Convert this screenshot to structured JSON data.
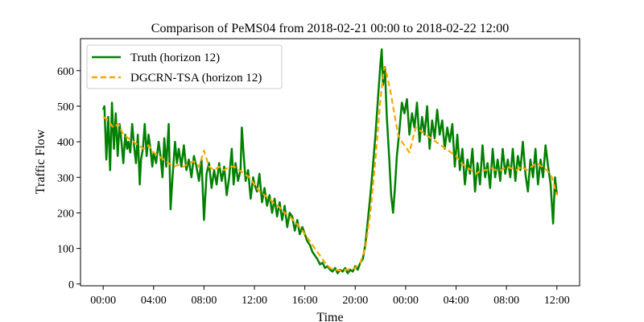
{
  "chart_data": {
    "type": "line",
    "title": "Comparison of PeMS04 from 2018-02-21 00:00 to 2018-02-22 12:00",
    "xlabel": "Time",
    "ylabel": "Traffic Flow",
    "x_ticks": [
      "00:00",
      "04:00",
      "08:00",
      "12:00",
      "16:00",
      "20:00",
      "00:00",
      "04:00",
      "08:00",
      "12:00"
    ],
    "x_tick_hours": [
      0,
      4,
      8,
      12,
      16,
      20,
      24,
      28,
      32,
      36
    ],
    "xlim": [
      -1.8,
      37.8
    ],
    "y_ticks": [
      0,
      100,
      200,
      300,
      400,
      500,
      600
    ],
    "ylim": [
      -5,
      690
    ],
    "legend_position": "upper-left",
    "grid": false,
    "x_unit": "hours from 2018-02-21 00:00",
    "series": [
      {
        "name": "Truth (horizon 12)",
        "color": "#008000",
        "style": "solid",
        "points": [
          [
            0,
            490
          ],
          [
            0.1,
            500
          ],
          [
            0.25,
            350
          ],
          [
            0.4,
            470
          ],
          [
            0.55,
            320
          ],
          [
            0.7,
            510
          ],
          [
            0.85,
            380
          ],
          [
            1,
            480
          ],
          [
            1.15,
            360
          ],
          [
            1.3,
            450
          ],
          [
            1.45,
            400
          ],
          [
            1.6,
            340
          ],
          [
            1.75,
            420
          ],
          [
            1.9,
            380
          ],
          [
            2,
            400
          ],
          [
            2.15,
            370
          ],
          [
            2.3,
            450
          ],
          [
            2.45,
            390
          ],
          [
            2.6,
            340
          ],
          [
            2.75,
            420
          ],
          [
            2.9,
            280
          ],
          [
            3,
            350
          ],
          [
            3.15,
            380
          ],
          [
            3.3,
            450
          ],
          [
            3.45,
            360
          ],
          [
            3.6,
            420
          ],
          [
            3.75,
            380
          ],
          [
            3.9,
            330
          ],
          [
            4,
            370
          ],
          [
            4.2,
            340
          ],
          [
            4.4,
            400
          ],
          [
            4.55,
            360
          ],
          [
            4.7,
            300
          ],
          [
            4.85,
            410
          ],
          [
            5,
            330
          ],
          [
            5.2,
            450
          ],
          [
            5.35,
            210
          ],
          [
            5.5,
            300
          ],
          [
            5.7,
            400
          ],
          [
            5.85,
            340
          ],
          [
            6,
            380
          ],
          [
            6.2,
            330
          ],
          [
            6.4,
            390
          ],
          [
            6.6,
            320
          ],
          [
            6.8,
            350
          ],
          [
            7,
            300
          ],
          [
            7.2,
            360
          ],
          [
            7.4,
            330
          ],
          [
            7.6,
            290
          ],
          [
            7.8,
            350
          ],
          [
            8,
            180
          ],
          [
            8.2,
            310
          ],
          [
            8.4,
            340
          ],
          [
            8.6,
            270
          ],
          [
            8.8,
            320
          ],
          [
            9,
            280
          ],
          [
            9.2,
            340
          ],
          [
            9.4,
            290
          ],
          [
            9.6,
            330
          ],
          [
            9.8,
            250
          ],
          [
            10,
            300
          ],
          [
            10.2,
            380
          ],
          [
            10.35,
            280
          ],
          [
            10.5,
            340
          ],
          [
            10.7,
            290
          ],
          [
            10.9,
            320
          ],
          [
            11,
            440
          ],
          [
            11.15,
            360
          ],
          [
            11.3,
            290
          ],
          [
            11.5,
            320
          ],
          [
            11.7,
            240
          ],
          [
            11.9,
            300
          ],
          [
            12,
            280
          ],
          [
            12.2,
            260
          ],
          [
            12.4,
            310
          ],
          [
            12.6,
            230
          ],
          [
            12.8,
            270
          ],
          [
            13,
            220
          ],
          [
            13.2,
            250
          ],
          [
            13.4,
            200
          ],
          [
            13.6,
            240
          ],
          [
            13.8,
            190
          ],
          [
            14,
            230
          ],
          [
            14.2,
            180
          ],
          [
            14.4,
            220
          ],
          [
            14.6,
            160
          ],
          [
            14.8,
            200
          ],
          [
            15,
            190
          ],
          [
            15.2,
            150
          ],
          [
            15.4,
            180
          ],
          [
            15.6,
            140
          ],
          [
            15.8,
            160
          ],
          [
            16,
            140
          ],
          [
            16.2,
            120
          ],
          [
            16.4,
            110
          ],
          [
            16.6,
            90
          ],
          [
            16.8,
            80
          ],
          [
            17,
            70
          ],
          [
            17.2,
            55
          ],
          [
            17.4,
            60
          ],
          [
            17.6,
            45
          ],
          [
            17.8,
            50
          ],
          [
            18,
            40
          ],
          [
            18.2,
            35
          ],
          [
            18.4,
            45
          ],
          [
            18.6,
            30
          ],
          [
            18.8,
            40
          ],
          [
            19,
            35
          ],
          [
            19.2,
            45
          ],
          [
            19.4,
            30
          ],
          [
            19.6,
            40
          ],
          [
            19.8,
            35
          ],
          [
            20,
            50
          ],
          [
            20.2,
            40
          ],
          [
            20.4,
            60
          ],
          [
            20.6,
            70
          ],
          [
            20.8,
            110
          ],
          [
            21,
            180
          ],
          [
            21.2,
            250
          ],
          [
            21.4,
            330
          ],
          [
            21.6,
            420
          ],
          [
            21.8,
            520
          ],
          [
            22,
            620
          ],
          [
            22.1,
            660
          ],
          [
            22.2,
            560
          ],
          [
            22.35,
            610
          ],
          [
            22.5,
            470
          ],
          [
            22.7,
            350
          ],
          [
            22.85,
            250
          ],
          [
            23,
            200
          ],
          [
            23.15,
            270
          ],
          [
            23.3,
            360
          ],
          [
            23.5,
            430
          ],
          [
            23.7,
            510
          ],
          [
            23.9,
            480
          ],
          [
            24.1,
            520
          ],
          [
            24.3,
            420
          ],
          [
            24.5,
            480
          ],
          [
            24.7,
            440
          ],
          [
            24.9,
            510
          ],
          [
            25.1,
            400
          ],
          [
            25.3,
            470
          ],
          [
            25.5,
            420
          ],
          [
            25.7,
            500
          ],
          [
            25.9,
            380
          ],
          [
            26.1,
            460
          ],
          [
            26.3,
            410
          ],
          [
            26.5,
            490
          ],
          [
            26.7,
            420
          ],
          [
            26.9,
            460
          ],
          [
            27.1,
            380
          ],
          [
            27.3,
            440
          ],
          [
            27.5,
            400
          ],
          [
            27.7,
            450
          ],
          [
            27.9,
            330
          ],
          [
            28.1,
            420
          ],
          [
            28.3,
            320
          ],
          [
            28.5,
            380
          ],
          [
            28.7,
            280
          ],
          [
            28.9,
            350
          ],
          [
            29.1,
            310
          ],
          [
            29.3,
            380
          ],
          [
            29.5,
            260
          ],
          [
            29.7,
            340
          ],
          [
            29.9,
            280
          ],
          [
            30.1,
            390
          ],
          [
            30.3,
            300
          ],
          [
            30.5,
            340
          ],
          [
            30.7,
            270
          ],
          [
            30.9,
            380
          ],
          [
            31.1,
            300
          ],
          [
            31.3,
            350
          ],
          [
            31.5,
            290
          ],
          [
            31.7,
            380
          ],
          [
            31.9,
            310
          ],
          [
            32.1,
            350
          ],
          [
            32.3,
            300
          ],
          [
            32.5,
            380
          ],
          [
            32.7,
            290
          ],
          [
            32.9,
            360
          ],
          [
            33.1,
            320
          ],
          [
            33.3,
            400
          ],
          [
            33.5,
            310
          ],
          [
            33.7,
            260
          ],
          [
            33.9,
            350
          ],
          [
            34.1,
            300
          ],
          [
            34.3,
            380
          ],
          [
            34.5,
            280
          ],
          [
            34.7,
            350
          ],
          [
            34.9,
            300
          ],
          [
            35.1,
            390
          ],
          [
            35.3,
            330
          ],
          [
            35.5,
            280
          ],
          [
            35.7,
            170
          ],
          [
            35.85,
            300
          ],
          [
            36,
            250
          ]
        ]
      },
      {
        "name": "DGCRN-TSA (horizon 12)",
        "color": "#FFA500",
        "style": "dashed",
        "points": [
          [
            0,
            470
          ],
          [
            0.4,
            460
          ],
          [
            0.8,
            440
          ],
          [
            1.2,
            450
          ],
          [
            1.6,
            420
          ],
          [
            2,
            410
          ],
          [
            2.4,
            400
          ],
          [
            2.8,
            390
          ],
          [
            3.2,
            380
          ],
          [
            3.6,
            390
          ],
          [
            4,
            370
          ],
          [
            4.4,
            360
          ],
          [
            4.8,
            350
          ],
          [
            5.2,
            340
          ],
          [
            5.6,
            330
          ],
          [
            6,
            335
          ],
          [
            6.4,
            330
          ],
          [
            6.8,
            340
          ],
          [
            7.2,
            345
          ],
          [
            7.6,
            330
          ],
          [
            8,
            375
          ],
          [
            8.4,
            330
          ],
          [
            8.8,
            320
          ],
          [
            9.2,
            330
          ],
          [
            9.6,
            320
          ],
          [
            10,
            330
          ],
          [
            10.4,
            330
          ],
          [
            10.8,
            320
          ],
          [
            11.2,
            310
          ],
          [
            11.6,
            300
          ],
          [
            12,
            280
          ],
          [
            12.4,
            260
          ],
          [
            12.8,
            250
          ],
          [
            13.2,
            240
          ],
          [
            13.6,
            225
          ],
          [
            14,
            215
          ],
          [
            14.4,
            200
          ],
          [
            14.8,
            190
          ],
          [
            15.2,
            175
          ],
          [
            15.6,
            160
          ],
          [
            16,
            140
          ],
          [
            16.4,
            120
          ],
          [
            16.8,
            100
          ],
          [
            17.2,
            80
          ],
          [
            17.6,
            60
          ],
          [
            18,
            45
          ],
          [
            18.4,
            40
          ],
          [
            18.8,
            38
          ],
          [
            19.2,
            40
          ],
          [
            19.6,
            42
          ],
          [
            20,
            45
          ],
          [
            20.4,
            60
          ],
          [
            20.8,
            100
          ],
          [
            21.2,
            200
          ],
          [
            21.6,
            350
          ],
          [
            22,
            520
          ],
          [
            22.3,
            610
          ],
          [
            22.5,
            590
          ],
          [
            22.8,
            540
          ],
          [
            23.1,
            480
          ],
          [
            23.4,
            420
          ],
          [
            23.7,
            400
          ],
          [
            24.1,
            380
          ],
          [
            24.3,
            370
          ],
          [
            24.5,
            400
          ],
          [
            24.8,
            440
          ],
          [
            25.2,
            430
          ],
          [
            25.6,
            420
          ],
          [
            26,
            410
          ],
          [
            26.4,
            400
          ],
          [
            26.8,
            390
          ],
          [
            27.2,
            380
          ],
          [
            27.6,
            370
          ],
          [
            28,
            360
          ],
          [
            28.4,
            340
          ],
          [
            28.8,
            330
          ],
          [
            29.2,
            320
          ],
          [
            29.6,
            310
          ],
          [
            30,
            320
          ],
          [
            30.4,
            320
          ],
          [
            30.8,
            325
          ],
          [
            31.2,
            320
          ],
          [
            31.6,
            320
          ],
          [
            32,
            330
          ],
          [
            32.4,
            325
          ],
          [
            32.8,
            320
          ],
          [
            33.2,
            330
          ],
          [
            33.6,
            320
          ],
          [
            34,
            330
          ],
          [
            34.4,
            340
          ],
          [
            34.8,
            330
          ],
          [
            35.2,
            320
          ],
          [
            35.6,
            300
          ],
          [
            36,
            250
          ]
        ]
      }
    ]
  }
}
